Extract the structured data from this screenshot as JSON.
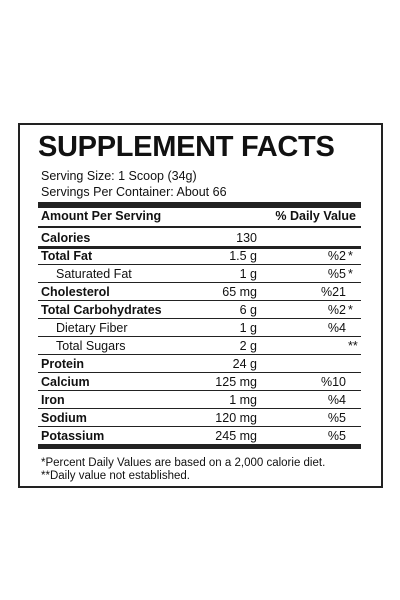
{
  "header": {
    "title": "SUPPLEMENT FACTS",
    "serving_size": "Serving Size: 1 Scoop (34g)",
    "servings_per_container": "Servings Per Container: About 66"
  },
  "table": {
    "columns": [
      "Amount Per Serving",
      "% Daily Value"
    ],
    "rows": [
      {
        "name": "Calories",
        "amount": "130"
      },
      {
        "name": "Total Fat",
        "amount": "1.5 g",
        "dv": "%2",
        "note": "*"
      },
      {
        "name": "Saturated Fat",
        "amount": "1 g",
        "dv": "%5",
        "note": "*",
        "sub": true
      },
      {
        "name": "Cholesterol",
        "amount": "65 mg",
        "dv": "%21"
      },
      {
        "name": "Total Carbohydrates",
        "amount": "6 g",
        "dv": "%2",
        "note": "*"
      },
      {
        "name": "Dietary Fiber",
        "amount": "1 g",
        "dv": "%4",
        "sub": true
      },
      {
        "name": "Total Sugars",
        "amount": "2 g",
        "note": "**",
        "sub": true
      },
      {
        "name": "Protein",
        "amount": "24 g"
      },
      {
        "name": "Calcium",
        "amount": "125 mg",
        "dv": "%10"
      },
      {
        "name": "Iron",
        "amount": "1 mg",
        "dv": "%4"
      },
      {
        "name": "Sodium",
        "amount": "120 mg",
        "dv": "%5"
      },
      {
        "name": "Potassium",
        "amount": "245 mg",
        "dv": "%5"
      }
    ]
  },
  "footnotes": [
    "*Percent Daily Values are based on a 2,000 calorie diet.",
    "**Daily value not established."
  ]
}
